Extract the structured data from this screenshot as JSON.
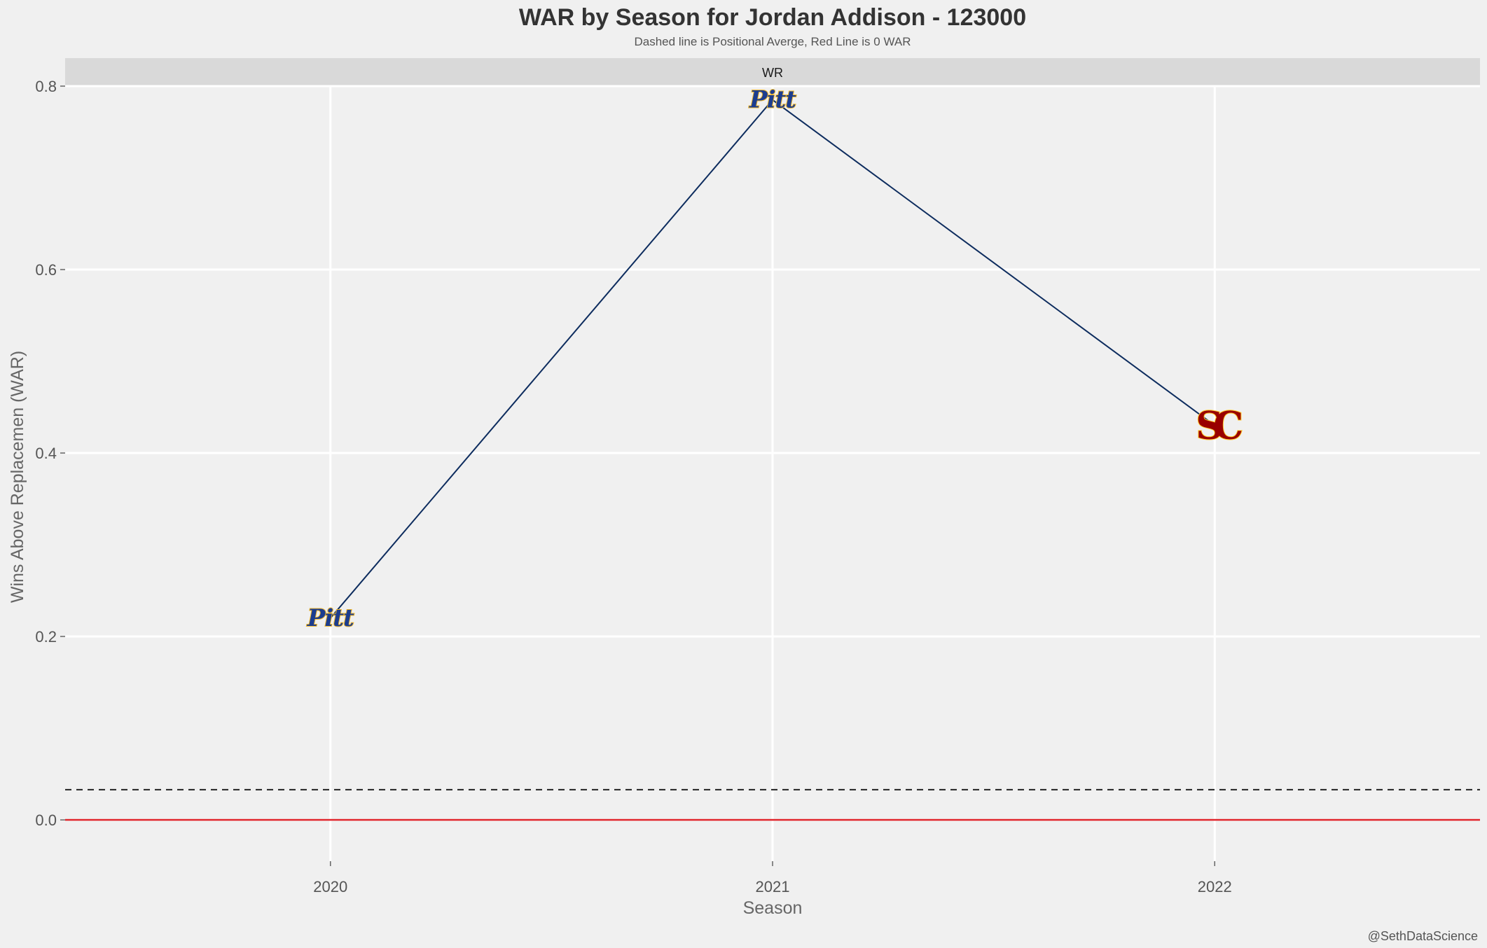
{
  "chart_data": {
    "type": "line",
    "title": "WAR by Season for Jordan Addison - 123000",
    "subtitle": "Dashed line is Positional Averge, Red Line is 0 WAR",
    "facet_label": "WR",
    "xlabel": "Season",
    "ylabel": "Wins Above Replacemen (WAR)",
    "caption": "@SethDataScience",
    "x": [
      2020,
      2021,
      2022
    ],
    "x_tick_labels": [
      "2020",
      "2021",
      "2022"
    ],
    "series": [
      {
        "values": [
          0.22,
          0.785,
          0.43
        ]
      }
    ],
    "point_logos": [
      "Pitt",
      "Pitt",
      "SC"
    ],
    "y_ticks": [
      0.0,
      0.2,
      0.4,
      0.6,
      0.8
    ],
    "y_tick_labels": [
      "0.0",
      "0.2",
      "0.4",
      "0.6",
      "0.8"
    ],
    "ylim": [
      -0.045,
      0.8
    ],
    "xlim": [
      2019.4,
      2022.6
    ],
    "positional_average": 0.033,
    "zero_line": 0.0,
    "grid": true,
    "colors": {
      "background": "#f0f0f0",
      "grid": "#ffffff",
      "line": "#0d2c5e",
      "zero_line": "#e0242b",
      "avg_line": "#222222",
      "strip": "#d9d9d9",
      "pitt_blue": "#1c3d8f",
      "pitt_gold": "#f1b82d",
      "usc_cardinal": "#990000",
      "usc_gold": "#ffc72c"
    }
  }
}
